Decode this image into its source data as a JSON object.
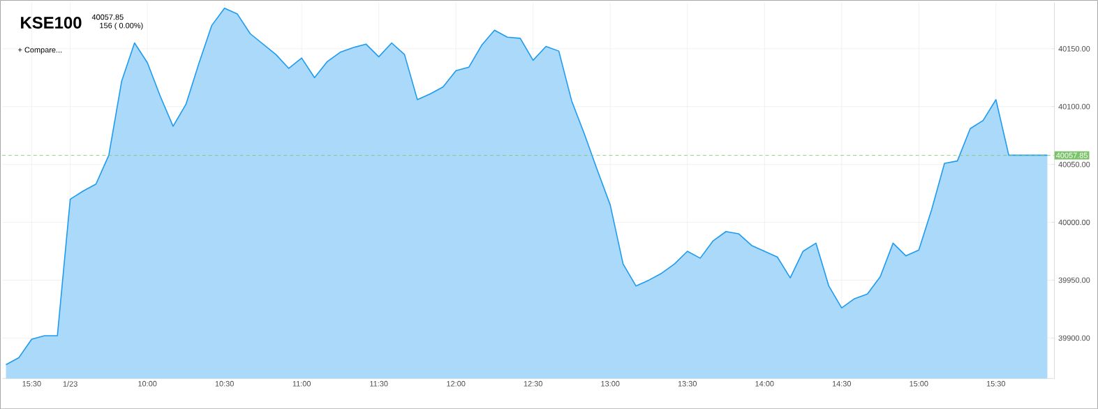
{
  "chart_data": {
    "type": "area",
    "title": "KSE100",
    "subtitle": "40057.85",
    "annotations": [
      "156 ( 0.00%)",
      "+ Compare..."
    ],
    "categories": [
      null,
      null,
      "15:30",
      null,
      null,
      "1/23",
      null,
      null,
      null,
      null,
      null,
      "10:00",
      null,
      null,
      null,
      null,
      null,
      "10:30",
      null,
      null,
      null,
      null,
      null,
      "11:00",
      null,
      null,
      null,
      null,
      null,
      "11:30",
      null,
      null,
      null,
      null,
      null,
      "12:00",
      null,
      null,
      null,
      null,
      null,
      "12:30",
      null,
      null,
      null,
      null,
      null,
      "13:00",
      null,
      null,
      null,
      null,
      null,
      "13:30",
      null,
      null,
      null,
      null,
      null,
      "14:00",
      null,
      null,
      null,
      null,
      null,
      "14:30",
      null,
      null,
      null,
      null,
      null,
      "15:00",
      null,
      null,
      null,
      null,
      null,
      "15:30",
      null,
      null,
      null,
      null
    ],
    "series": [
      {
        "color": "#1e9bf0",
        "values": [
          39877,
          39883,
          39899,
          39902,
          39902,
          40020,
          40027,
          40033,
          40058,
          40122,
          40155,
          40138,
          40109,
          40083,
          40102,
          40137,
          40170,
          40185,
          40180,
          40163,
          40154,
          40145,
          40133,
          40142,
          40125,
          40139,
          40147,
          40151,
          40154,
          40143,
          40155,
          40145,
          40106,
          40111,
          40117,
          40131,
          40134,
          40153,
          40166,
          40160,
          40159,
          40140,
          40152,
          40148,
          40105,
          40076,
          40045,
          40015,
          39964,
          39945,
          39950,
          39956,
          39964,
          39975,
          39969,
          39984,
          39992,
          39990,
          39980,
          39975,
          39970,
          39952,
          39975,
          39982,
          39945,
          39926,
          39934,
          39938,
          39953,
          39982,
          39971,
          39976,
          40011,
          40051,
          40053,
          40081,
          40088,
          40106,
          40058,
          40058,
          40058,
          40058
        ]
      }
    ],
    "ylim": [
      39865,
      40190
    ],
    "yticks": [
      {
        "value": 39900,
        "label": "39900.00"
      },
      {
        "value": 39950,
        "label": "39950.00"
      },
      {
        "value": 40000,
        "label": "40000.00"
      },
      {
        "value": 40050,
        "label": "40050.00"
      },
      {
        "value": 40100,
        "label": "40100.00"
      },
      {
        "value": 40150,
        "label": "40150.00"
      }
    ],
    "grid": true,
    "ref_lines": [
      {
        "axis": "y",
        "value": 40057.85,
        "label": "40057.85",
        "color": "#7cc46b",
        "line_style": "dashed"
      }
    ]
  }
}
